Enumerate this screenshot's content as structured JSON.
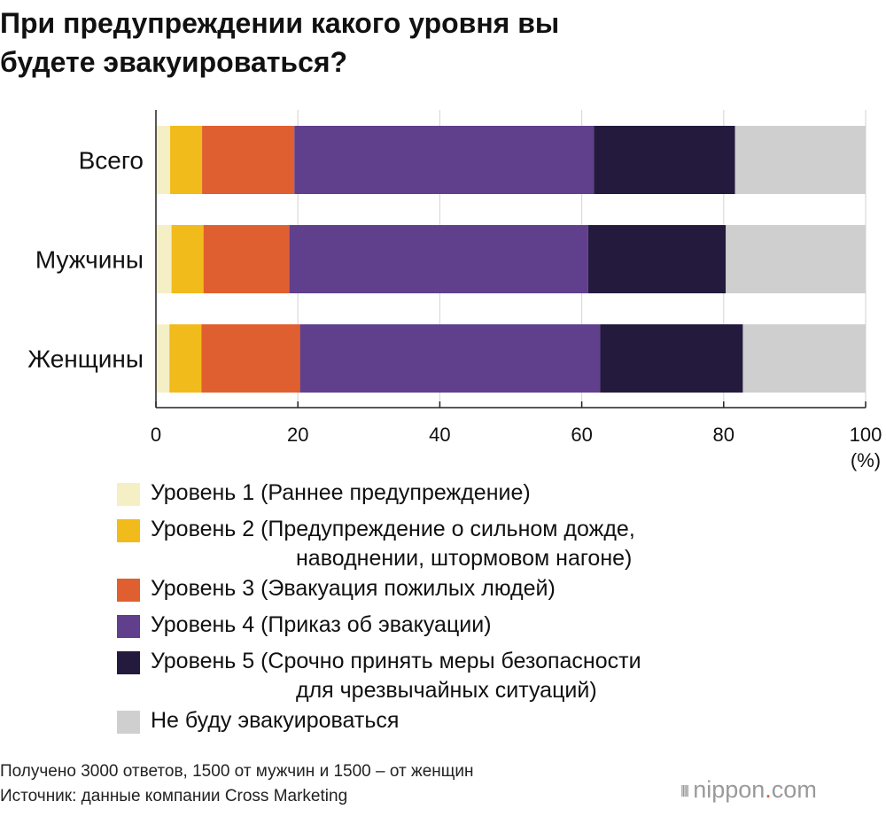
{
  "title": {
    "line1": "При предупреждении какого уровня вы",
    "line2": "будете эвакуироваться?"
  },
  "chart_data": {
    "type": "bar",
    "orientation": "horizontal",
    "stacked": true,
    "categories": [
      "Всего",
      "Мужчины",
      "Женщины"
    ],
    "series": [
      {
        "name": "Уровень 1 (Раннее предупреждение)",
        "color": "#f5efc6",
        "values": [
          2.0,
          2.2,
          1.9
        ]
      },
      {
        "name": "Уровень 2 (Предупреждение о сильном дожде, наводнении, штормовом нагоне)",
        "color": "#f2bb1c",
        "values": [
          4.5,
          4.5,
          4.5
        ]
      },
      {
        "name": "Уровень 3 (Эвакуация пожилых людей)",
        "color": "#e05f31",
        "values": [
          13.0,
          12.1,
          13.9
        ]
      },
      {
        "name": "Уровень 4 (Приказ об эвакуации)",
        "color": "#603f8d",
        "values": [
          42.2,
          42.1,
          42.3
        ]
      },
      {
        "name": "Уровень 5 (Срочно принять меры безопасности для чрезвычайных ситуаций)",
        "color": "#231a3e",
        "values": [
          19.9,
          19.4,
          20.1
        ]
      },
      {
        "name": "Не буду эвакуироваться",
        "color": "#cfcfcf",
        "values": [
          18.4,
          19.7,
          17.3
        ]
      }
    ],
    "xlim": [
      0,
      100
    ],
    "xticks": [
      "0",
      "20",
      "40",
      "60",
      "80",
      "100"
    ],
    "xunit": "(%)",
    "grid": true
  },
  "legend": [
    {
      "line1": "Уровень 1 (Раннее предупреждение)",
      "color": "#f5efc6"
    },
    {
      "line1": "Уровень 2 (Предупреждение о сильном дожде,",
      "line2": "наводнении, штормовом нагоне)",
      "color": "#f2bb1c"
    },
    {
      "line1": "Уровень 3 (Эвакуация пожилых людей)",
      "color": "#e05f31"
    },
    {
      "line1": "Уровень 4 (Приказ об эвакуации)",
      "color": "#603f8d"
    },
    {
      "line1": "Уровень 5 (Срочно принять меры безопасности",
      "line2": "для чрезвычайных ситуаций)",
      "color": "#231a3e"
    },
    {
      "line1": "Не буду эвакуироваться",
      "color": "#cfcfcf"
    }
  ],
  "footer": {
    "note": "Получено 3000 ответов, 1500 от мужчин и 1500 – от женщин",
    "source": "Источник: данные компании Cross Marketing"
  },
  "logo": {
    "text": "nippon",
    "dot": ".",
    "suffix": "com",
    "waves": "|||||"
  },
  "colors": {
    "grid": "#d9d9d9",
    "axis": "#222222",
    "text": "#111111"
  }
}
